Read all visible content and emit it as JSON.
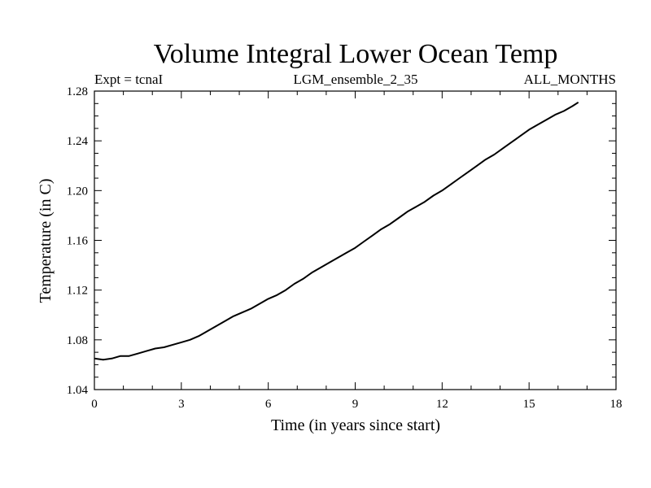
{
  "chart_data": {
    "type": "line",
    "title": "Volume Integral Lower Ocean Temp",
    "subtitle_left": "Expt = tcnaI",
    "subtitle_center": "LGM_ensemble_2_35",
    "subtitle_right": "ALL_MONTHS",
    "xlabel": "Time (in years since start)",
    "ylabel": "Temperature (in C)",
    "xlim": [
      0,
      18
    ],
    "ylim": [
      1.04,
      1.28
    ],
    "xticks": [
      0,
      3,
      6,
      9,
      12,
      15,
      18
    ],
    "xtick_labels": [
      "0",
      "3",
      "6",
      "9",
      "12",
      "15",
      "18"
    ],
    "yticks": [
      1.04,
      1.08,
      1.12,
      1.16,
      1.2,
      1.24,
      1.28
    ],
    "ytick_labels": [
      "1.04",
      "1.08",
      "1.12",
      "1.16",
      "1.20",
      "1.24",
      "1.28"
    ],
    "grid": false,
    "series": [
      {
        "name": "Volume Integral Lower Ocean Temp",
        "color": "#000000",
        "x": [
          0.0,
          0.3,
          0.6,
          0.9,
          1.2,
          1.5,
          1.8,
          2.1,
          2.4,
          2.7,
          3.0,
          3.3,
          3.6,
          3.9,
          4.2,
          4.5,
          4.8,
          5.1,
          5.4,
          5.7,
          6.0,
          6.3,
          6.6,
          6.9,
          7.2,
          7.5,
          7.8,
          8.1,
          8.4,
          8.7,
          9.0,
          9.3,
          9.6,
          9.9,
          10.2,
          10.5,
          10.8,
          11.1,
          11.4,
          11.7,
          12.0,
          12.3,
          12.6,
          12.9,
          13.2,
          13.5,
          13.8,
          14.1,
          14.4,
          14.7,
          15.0,
          15.3,
          15.6,
          15.9,
          16.2,
          16.5,
          16.7
        ],
        "y": [
          1.065,
          1.064,
          1.065,
          1.067,
          1.067,
          1.069,
          1.071,
          1.073,
          1.074,
          1.076,
          1.078,
          1.08,
          1.083,
          1.087,
          1.091,
          1.095,
          1.099,
          1.102,
          1.105,
          1.109,
          1.113,
          1.116,
          1.12,
          1.125,
          1.129,
          1.134,
          1.138,
          1.142,
          1.146,
          1.15,
          1.154,
          1.159,
          1.164,
          1.169,
          1.173,
          1.178,
          1.183,
          1.187,
          1.191,
          1.196,
          1.2,
          1.205,
          1.21,
          1.215,
          1.22,
          1.225,
          1.229,
          1.234,
          1.239,
          1.244,
          1.249,
          1.253,
          1.257,
          1.261,
          1.264,
          1.268,
          1.271
        ]
      }
    ]
  }
}
